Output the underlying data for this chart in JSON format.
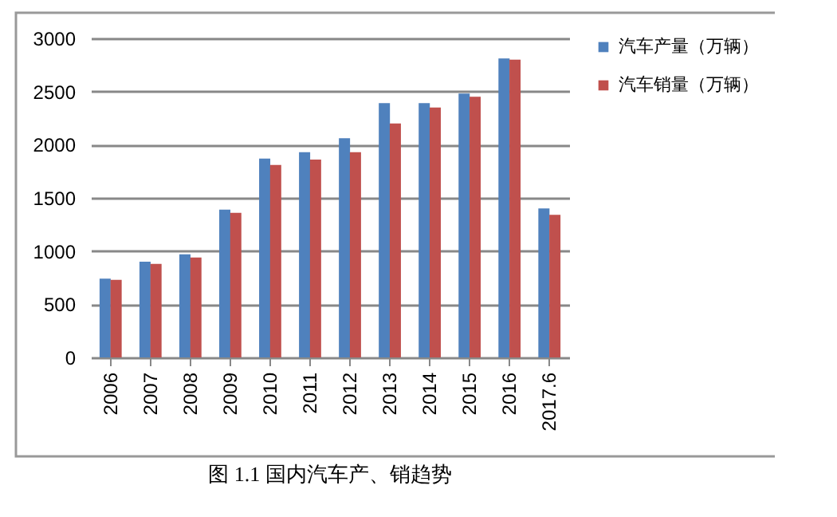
{
  "chart_data": {
    "type": "bar",
    "title": "图 1.1  国内汽车产、销趋势",
    "categories": [
      "2006",
      "2007",
      "2008",
      "2009",
      "2010",
      "2011",
      "2012",
      "2013",
      "2014",
      "2015",
      "2016",
      "2017.6"
    ],
    "series": [
      {
        "name": "汽车产量（万辆）",
        "color": "#4f81bd",
        "values": [
          740,
          900,
          970,
          1390,
          1870,
          1930,
          2060,
          2390,
          2390,
          2480,
          2810,
          1400
        ]
      },
      {
        "name": "汽车销量（万辆）",
        "color": "#c0504d",
        "values": [
          730,
          880,
          940,
          1360,
          1810,
          1860,
          1930,
          2200,
          2350,
          2450,
          2800,
          1340
        ]
      }
    ],
    "ylim": [
      0,
      3000
    ],
    "yticks": [
      0,
      500,
      1000,
      1500,
      2000,
      2500,
      3000
    ],
    "grid": "y",
    "legend": "right"
  }
}
